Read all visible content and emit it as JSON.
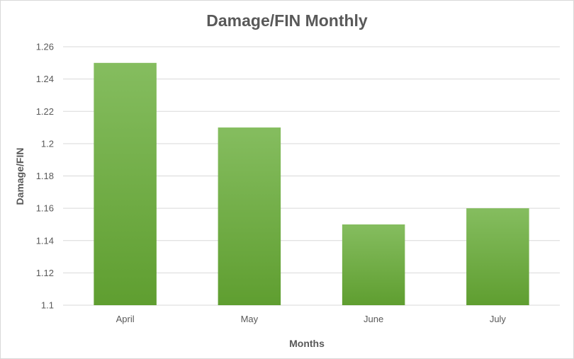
{
  "chart_data": {
    "type": "bar",
    "title": "Damage/FIN Monthly",
    "xlabel": "Months",
    "ylabel": "Damage/FIN",
    "categories": [
      "April",
      "May",
      "June",
      "July"
    ],
    "values": [
      1.25,
      1.21,
      1.15,
      1.16
    ],
    "ylim": [
      1.1,
      1.26
    ],
    "yticks": [
      "1.1",
      "1.12",
      "1.14",
      "1.16",
      "1.18",
      "1.2",
      "1.22",
      "1.24",
      "1.26"
    ],
    "grid": true,
    "legend": "none",
    "colors": {
      "bar_top": "#85bd5f",
      "bar_bottom": "#5f9e30",
      "text": "#595959",
      "grid": "#d9d9d9"
    }
  }
}
